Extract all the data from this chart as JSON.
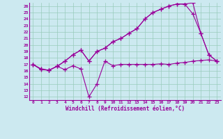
{
  "xlabel": "Windchill (Refroidissement éolien,°C)",
  "background_color": "#cce9f0",
  "grid_color": "#99ccbb",
  "line_color": "#990099",
  "xlim": [
    -0.5,
    23.5
  ],
  "ylim": [
    11.5,
    26.5
  ],
  "xticks": [
    0,
    1,
    2,
    3,
    4,
    5,
    6,
    7,
    8,
    9,
    10,
    11,
    12,
    13,
    14,
    15,
    16,
    17,
    18,
    19,
    20,
    21,
    22,
    23
  ],
  "yticks": [
    12,
    13,
    14,
    15,
    16,
    17,
    18,
    19,
    20,
    21,
    22,
    23,
    24,
    25,
    26
  ],
  "series": [
    [
      17.0,
      16.2,
      16.1,
      16.7,
      16.2,
      16.8,
      16.3,
      12.0,
      14.0,
      17.5,
      16.8,
      17.0,
      17.0,
      17.0,
      17.0,
      17.0,
      17.1,
      17.0,
      17.2,
      17.3,
      17.5,
      17.6,
      17.7,
      17.5
    ],
    [
      17.0,
      16.3,
      16.1,
      16.7,
      17.5,
      18.5,
      19.2,
      17.5,
      19.0,
      19.5,
      20.5,
      21.0,
      21.8,
      22.5,
      24.0,
      25.0,
      25.5,
      26.0,
      26.3,
      26.3,
      26.5,
      21.8,
      18.5,
      17.5
    ],
    [
      17.0,
      16.3,
      16.1,
      16.7,
      17.5,
      18.5,
      19.2,
      17.5,
      19.0,
      19.5,
      20.5,
      21.0,
      21.8,
      22.5,
      24.0,
      25.0,
      25.5,
      26.0,
      26.3,
      26.3,
      24.8,
      21.8,
      18.5,
      17.5
    ]
  ]
}
